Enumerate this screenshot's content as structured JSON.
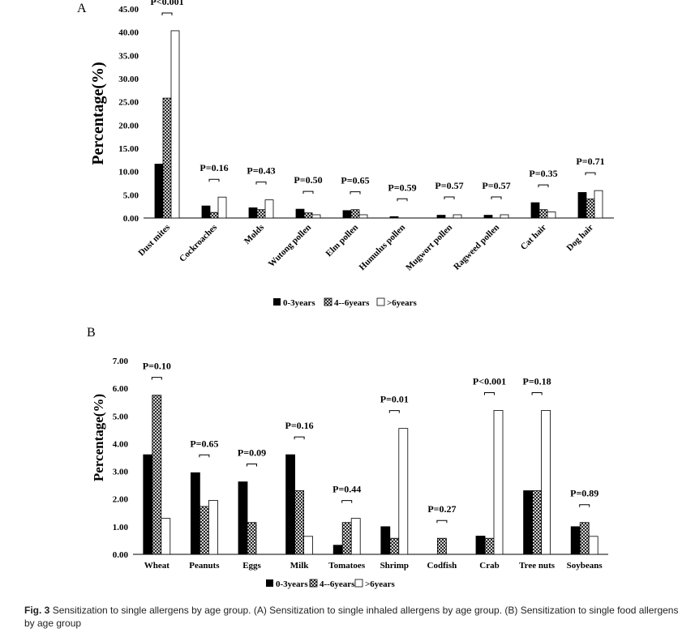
{
  "caption": {
    "fig_label": "Fig. 3",
    "text": "Sensitization to single allergens by age group. (A) Sensitization to single inhaled allergens by age group. (B) Sensitization to single food allergens by age group"
  },
  "legend_labels": [
    "0-3years",
    "4--6years",
    ">6years"
  ],
  "chart_data": [
    {
      "type": "bar",
      "panel": "A",
      "ylabel": "Percentage(%)",
      "ylim": [
        0,
        45
      ],
      "yticks": [
        "0.00",
        "5.00",
        "10.00",
        "15.00",
        "20.00",
        "25.00",
        "30.00",
        "35.00",
        "40.00",
        "45.00"
      ],
      "categories": [
        "Dust mites",
        "Cockroaches",
        "Molds",
        "Wutong pollen",
        "Elm pollen",
        "Humulus pollen",
        "Mugwort pollen",
        "Ragweed pollen",
        "Cat hair",
        "Dog hair"
      ],
      "series": [
        {
          "name": "0-3years",
          "values": [
            11.6,
            2.6,
            2.2,
            1.9,
            1.6,
            0.3,
            0.6,
            0.6,
            3.3,
            5.5
          ]
        },
        {
          "name": "4--6years",
          "values": [
            25.8,
            1.2,
            1.8,
            1.1,
            1.8,
            0.0,
            0.0,
            0.0,
            1.8,
            4.1
          ]
        },
        {
          "name": ">6years",
          "values": [
            40.3,
            4.5,
            3.9,
            0.7,
            0.7,
            0.0,
            0.7,
            0.7,
            1.3,
            5.9
          ]
        }
      ],
      "p_values": [
        "P<0.001",
        "P=0.16",
        "P=0.43",
        "P=0.50",
        "P=0.65",
        "P=0.59",
        "P=0.57",
        "P=0.57",
        "P=0.35",
        "P=0.71"
      ],
      "grid": false,
      "legend": "bottom"
    },
    {
      "type": "bar",
      "panel": "B",
      "ylabel": "Percentage(%)",
      "ylim": [
        0,
        7
      ],
      "yticks": [
        "0.00",
        "1.00",
        "2.00",
        "3.00",
        "4.00",
        "5.00",
        "6.00",
        "7.00"
      ],
      "categories": [
        "Wheat",
        "Peanuts",
        "Eggs",
        "Milk",
        "Tomatoes",
        "Shrimp",
        "Codfish",
        "Crab",
        "Tree nuts",
        "Soybeans"
      ],
      "series": [
        {
          "name": "0-3years",
          "values": [
            3.6,
            2.95,
            2.62,
            3.6,
            0.33,
            1.0,
            0.0,
            0.66,
            2.3,
            1.0
          ]
        },
        {
          "name": "4--6years",
          "values": [
            5.75,
            1.73,
            1.15,
            2.3,
            1.15,
            0.58,
            0.58,
            0.58,
            2.3,
            1.15
          ]
        },
        {
          "name": ">6years",
          "values": [
            1.3,
            1.95,
            0.0,
            0.65,
            1.3,
            4.55,
            0.0,
            5.2,
            5.2,
            0.65
          ]
        }
      ],
      "p_values": [
        "P=0.10",
        "P=0.65",
        "P=0.09",
        "P=0.16",
        "P=0.44",
        "P=0.01",
        "P=0.27",
        "P<0.001",
        "P=0.18",
        "P=0.89"
      ],
      "grid": false,
      "legend": "bottom"
    }
  ]
}
